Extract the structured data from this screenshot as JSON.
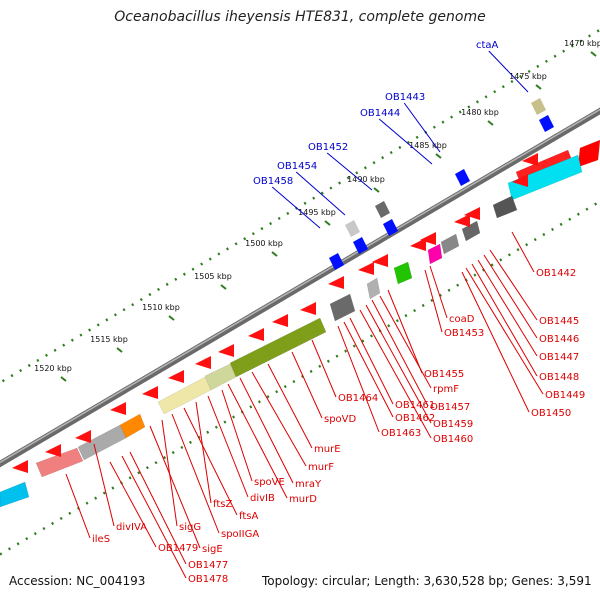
{
  "title": "Oceanobacillus iheyensis HTE831, complete genome",
  "accession": "Accession: NC_004193",
  "summary": "Topology: circular; Length: 3,630,528 bp; Genes: 3,591",
  "colors": {
    "forward_label": "#0000cc",
    "reverse_label": "#dd0000",
    "backbone": "#808080",
    "tick": "#2e7d1e"
  },
  "ticks": [
    "1470 kbp",
    "1475 kbp",
    "1480 kbp",
    "1485 kbp",
    "1490 kbp",
    "1495 kbp",
    "1500 kbp",
    "1505 kbp",
    "1510 kbp",
    "1515 kbp",
    "1520 kbp"
  ],
  "forward_labels": [
    "ctaA",
    "OB1443",
    "OB1444",
    "OB1452",
    "OB1454",
    "OB1458"
  ],
  "reverse_labels": [
    "OB1442",
    "OB1445",
    "OB1446",
    "OB1447",
    "OB1448",
    "OB1449",
    "OB1450",
    "coaD",
    "OB1453",
    "OB1455",
    "rpmF",
    "OB1457",
    "OB1459",
    "OB1460",
    "OB1461",
    "OB1462",
    "OB1463",
    "OB1464",
    "spoVD",
    "murE",
    "murF",
    "mraY",
    "murD",
    "spoVE",
    "divIB",
    "ftsZ",
    "ftsA",
    "spoIIGA",
    "sigG",
    "sigE",
    "divIVA",
    "OB1477",
    "OB1478",
    "OB1479",
    "ileS"
  ]
}
